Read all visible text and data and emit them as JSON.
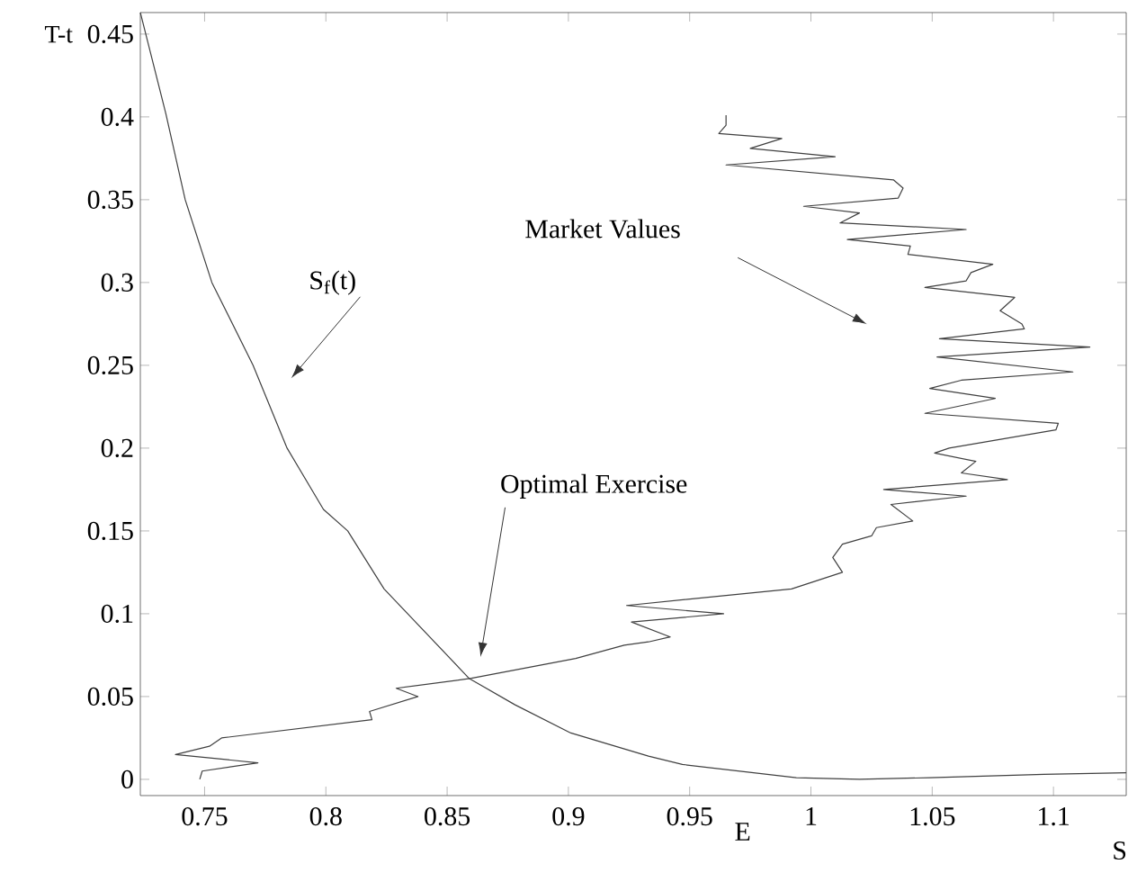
{
  "chart_data": {
    "type": "line",
    "xlabel": "S",
    "ylabel": "T-t",
    "xlim": [
      0.7235,
      1.13
    ],
    "ylim": [
      -0.0098,
      0.463
    ],
    "xticks": [
      0.75,
      0.8,
      0.85,
      0.9,
      0.95,
      1,
      1.05,
      1.1
    ],
    "yticks": [
      0,
      0.05,
      0.1,
      0.15,
      0.2,
      0.25,
      0.3,
      0.35,
      0.4,
      0.45
    ],
    "grid": false,
    "marker": "none",
    "line_style": "solid",
    "series": [
      {
        "color": "#404040",
        "x": [
          0.7235,
          0.734,
          0.742,
          0.753,
          0.77,
          0.784,
          0.799,
          0.809,
          0.824,
          0.859,
          0.878,
          0.901,
          0.933,
          0.947,
          0.994,
          1.02,
          1.049,
          1.096,
          1.13
        ],
        "values": [
          0.463,
          0.402,
          0.35,
          0.3,
          0.25,
          0.2,
          0.163,
          0.15,
          0.115,
          0.061,
          0.045,
          0.028,
          0.014,
          0.009,
          0.001,
          0.0,
          0.001,
          0.003,
          0.004
        ]
      },
      {
        "color": "#404040",
        "x": [
          0.748,
          0.749,
          0.772,
          0.738,
          0.752,
          0.757,
          0.819,
          0.818,
          0.838,
          0.829,
          0.86,
          0.903,
          0.923,
          0.933,
          0.942,
          0.926,
          0.964,
          0.924,
          0.992,
          1.013,
          1.009,
          1.013,
          1.025,
          1.027,
          1.042,
          1.033,
          1.064,
          1.03,
          1.081,
          1.062,
          1.068,
          1.051,
          1.057,
          1.101,
          1.102,
          1.047,
          1.076,
          1.049,
          1.062,
          1.108,
          1.052,
          1.115,
          1.053,
          1.088,
          1.087,
          1.078,
          1.084,
          1.047,
          1.064,
          1.066,
          1.075,
          1.04,
          1.041,
          1.015,
          1.064,
          1.012,
          1.02,
          0.997,
          1.036,
          1.038,
          1.034,
          0.965,
          1.01,
          0.975,
          0.988,
          0.962,
          0.965,
          0.965
        ],
        "values": [
          0.0,
          0.005,
          0.01,
          0.015,
          0.02,
          0.025,
          0.036,
          0.041,
          0.05,
          0.055,
          0.061,
          0.073,
          0.081,
          0.083,
          0.086,
          0.095,
          0.1,
          0.105,
          0.115,
          0.125,
          0.134,
          0.142,
          0.147,
          0.152,
          0.156,
          0.166,
          0.171,
          0.175,
          0.181,
          0.185,
          0.192,
          0.197,
          0.2,
          0.211,
          0.215,
          0.221,
          0.23,
          0.236,
          0.241,
          0.246,
          0.255,
          0.261,
          0.266,
          0.272,
          0.275,
          0.283,
          0.291,
          0.297,
          0.301,
          0.306,
          0.311,
          0.317,
          0.322,
          0.326,
          0.332,
          0.336,
          0.342,
          0.346,
          0.351,
          0.357,
          0.362,
          0.371,
          0.376,
          0.381,
          0.387,
          0.39,
          0.395,
          0.401
        ]
      }
    ],
    "annotations": [
      "S$_{f}$(t)",
      "Market Values",
      "Optimal Exercise",
      "E"
    ]
  }
}
